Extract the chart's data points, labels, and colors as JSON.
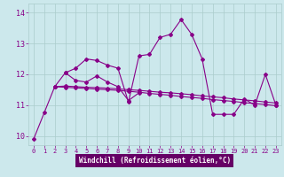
{
  "xlabel": "Windchill (Refroidissement éolien,°C)",
  "background_color": "#cce8ec",
  "line_color": "#880088",
  "grid_color": "#aacccc",
  "xlabel_bg": "#660066",
  "xlabel_fg": "#ffffff",
  "ylim": [
    9.7,
    14.3
  ],
  "xlim": [
    -0.5,
    23.5
  ],
  "yticks": [
    10,
    11,
    12,
    13,
    14
  ],
  "xticks": [
    0,
    1,
    2,
    3,
    4,
    5,
    6,
    7,
    8,
    9,
    10,
    11,
    12,
    13,
    14,
    15,
    16,
    17,
    18,
    19,
    20,
    21,
    22,
    23
  ],
  "series1_x": [
    0,
    1,
    2,
    3,
    4,
    5,
    6,
    7,
    8,
    9,
    10,
    11,
    12,
    13,
    14,
    15,
    16,
    17,
    18,
    19,
    20,
    21,
    22,
    23
  ],
  "series1_y": [
    9.9,
    10.75,
    11.6,
    12.05,
    12.2,
    12.5,
    12.45,
    12.3,
    12.2,
    11.1,
    12.6,
    12.65,
    13.2,
    13.3,
    13.78,
    13.3,
    12.5,
    10.7,
    10.7,
    10.7,
    11.2,
    11.0,
    12.0,
    11.0
  ],
  "series2_x": [
    3,
    4,
    5,
    6,
    7,
    8,
    9,
    10
  ],
  "series2_y": [
    12.05,
    11.8,
    11.75,
    11.95,
    11.75,
    11.6,
    11.15,
    11.4
  ],
  "series3_x": [
    2,
    3,
    4,
    5,
    6,
    7,
    8,
    9,
    10,
    11,
    12,
    13,
    14,
    15,
    16,
    17,
    18,
    19,
    20,
    21,
    22,
    23
  ],
  "series3_y": [
    11.6,
    11.58,
    11.56,
    11.54,
    11.52,
    11.5,
    11.48,
    11.45,
    11.42,
    11.38,
    11.35,
    11.32,
    11.28,
    11.25,
    11.22,
    11.18,
    11.15,
    11.12,
    11.08,
    11.05,
    11.02,
    10.98
  ],
  "series4_x": [
    2,
    3,
    4,
    5,
    6,
    7,
    8,
    9,
    10,
    11,
    12,
    13,
    14,
    15,
    16,
    17,
    18,
    19,
    20,
    21,
    22,
    23
  ],
  "series4_y": [
    11.6,
    11.62,
    11.6,
    11.58,
    11.57,
    11.55,
    11.53,
    11.5,
    11.48,
    11.45,
    11.42,
    11.4,
    11.37,
    11.34,
    11.3,
    11.27,
    11.24,
    11.2,
    11.17,
    11.14,
    11.1,
    11.07
  ]
}
